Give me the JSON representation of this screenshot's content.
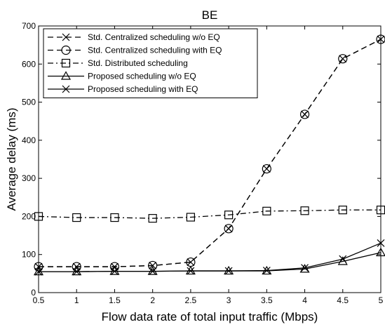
{
  "chart_data": {
    "type": "line",
    "title": "BE",
    "xlabel": "Flow data rate of total input traffic (Mbps)",
    "ylabel": "Average delay (ms)",
    "xlim": [
      0.5,
      5
    ],
    "ylim": [
      0,
      700
    ],
    "xticks": [
      "0.5",
      "1",
      "1.5",
      "2",
      "2.5",
      "3",
      "3.5",
      "4",
      "4.5",
      "5"
    ],
    "yticks": [
      "0",
      "100",
      "200",
      "300",
      "400",
      "500",
      "600",
      "700"
    ],
    "grid": false,
    "legend_position": "top-left",
    "x": [
      0.5,
      1,
      1.5,
      2,
      2.5,
      3,
      3.5,
      4,
      4.5,
      5
    ],
    "series": [
      {
        "name": "Std. Centralized scheduling w/o EQ",
        "values": [
          68,
          68,
          68,
          71,
          80,
          168,
          325,
          468,
          614,
          665
        ],
        "line_style": "dashed",
        "marker": "x"
      },
      {
        "name": "Std. Centralized scheduling with EQ",
        "values": [
          68,
          68,
          68,
          71,
          80,
          168,
          325,
          468,
          614,
          665
        ],
        "line_style": "dashed",
        "marker": "circle"
      },
      {
        "name": "Std. Distributed scheduling",
        "values": [
          200,
          197,
          197,
          195,
          198,
          204,
          214,
          215,
          217,
          217
        ],
        "line_style": "dashdot",
        "marker": "square"
      },
      {
        "name": "Proposed scheduling w/o EQ",
        "values": [
          55,
          55,
          56,
          56,
          57,
          57,
          57,
          62,
          82,
          105
        ],
        "line_style": "solid",
        "marker": "triangle"
      },
      {
        "name": "Proposed scheduling with EQ",
        "values": [
          55,
          55,
          56,
          56,
          57,
          57,
          58,
          65,
          88,
          130
        ],
        "line_style": "solid",
        "marker": "x"
      }
    ]
  }
}
